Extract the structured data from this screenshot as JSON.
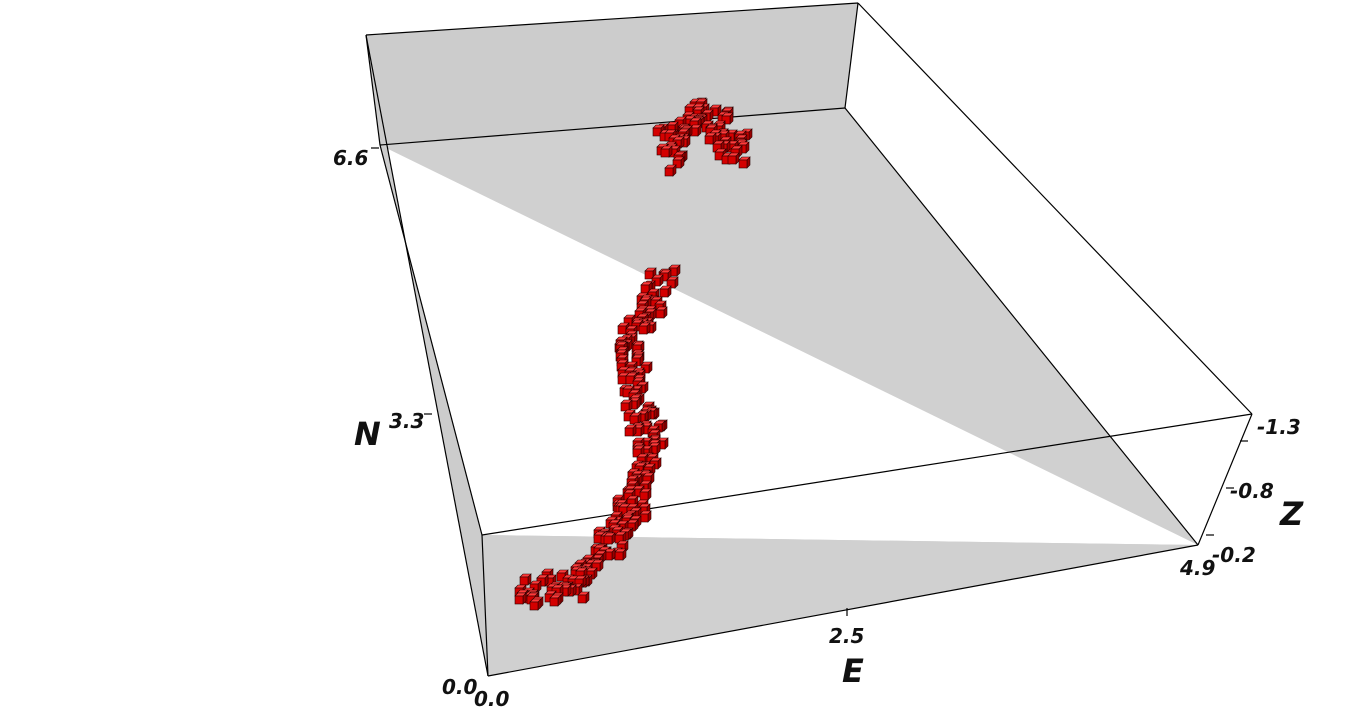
{
  "chart_data": {
    "type": "3d-voxel",
    "axes": {
      "x": {
        "label": "E",
        "range": [
          0.0,
          4.9
        ],
        "ticks": [
          0.0,
          2.5,
          4.9
        ],
        "tick_labels": [
          "0.0",
          "2.5",
          "4.9"
        ]
      },
      "y": {
        "label": "N",
        "range": [
          0.0,
          6.6
        ],
        "ticks": [
          0.0,
          3.3,
          6.6
        ],
        "tick_labels": [
          "0.0",
          "3.3",
          "6.6"
        ]
      },
      "z": {
        "label": "Z",
        "range": [
          -1.3,
          -0.2
        ],
        "ticks": [
          -0.2,
          -0.8,
          -1.3
        ],
        "tick_labels": [
          "-0.2",
          "-0.8",
          "-1.3"
        ]
      }
    },
    "floor_color": "#d0d0d0",
    "voxel_color": "#d40000",
    "bodies": [
      {
        "name": "",
        "centerline_EN": [
          [
            0.3,
            0.9
          ],
          [
            0.7,
            0.9
          ],
          [
            1.0,
            1.3
          ],
          [
            1.3,
            1.8
          ],
          [
            1.5,
            2.3
          ],
          [
            1.6,
            2.8
          ],
          [
            1.6,
            3.3
          ],
          [
            1.7,
            3.8
          ],
          [
            2.0,
            4.2
          ],
          [
            2.2,
            4.6
          ]
        ]
      },
      {
        "name": "",
        "centerline_EN": [
          [
            2.8,
            6.1
          ],
          [
            3.0,
            6.4
          ],
          [
            3.2,
            6.6
          ],
          [
            3.4,
            6.6
          ],
          [
            3.5,
            6.3
          ],
          [
            3.45,
            6.0
          ]
        ]
      }
    ]
  }
}
